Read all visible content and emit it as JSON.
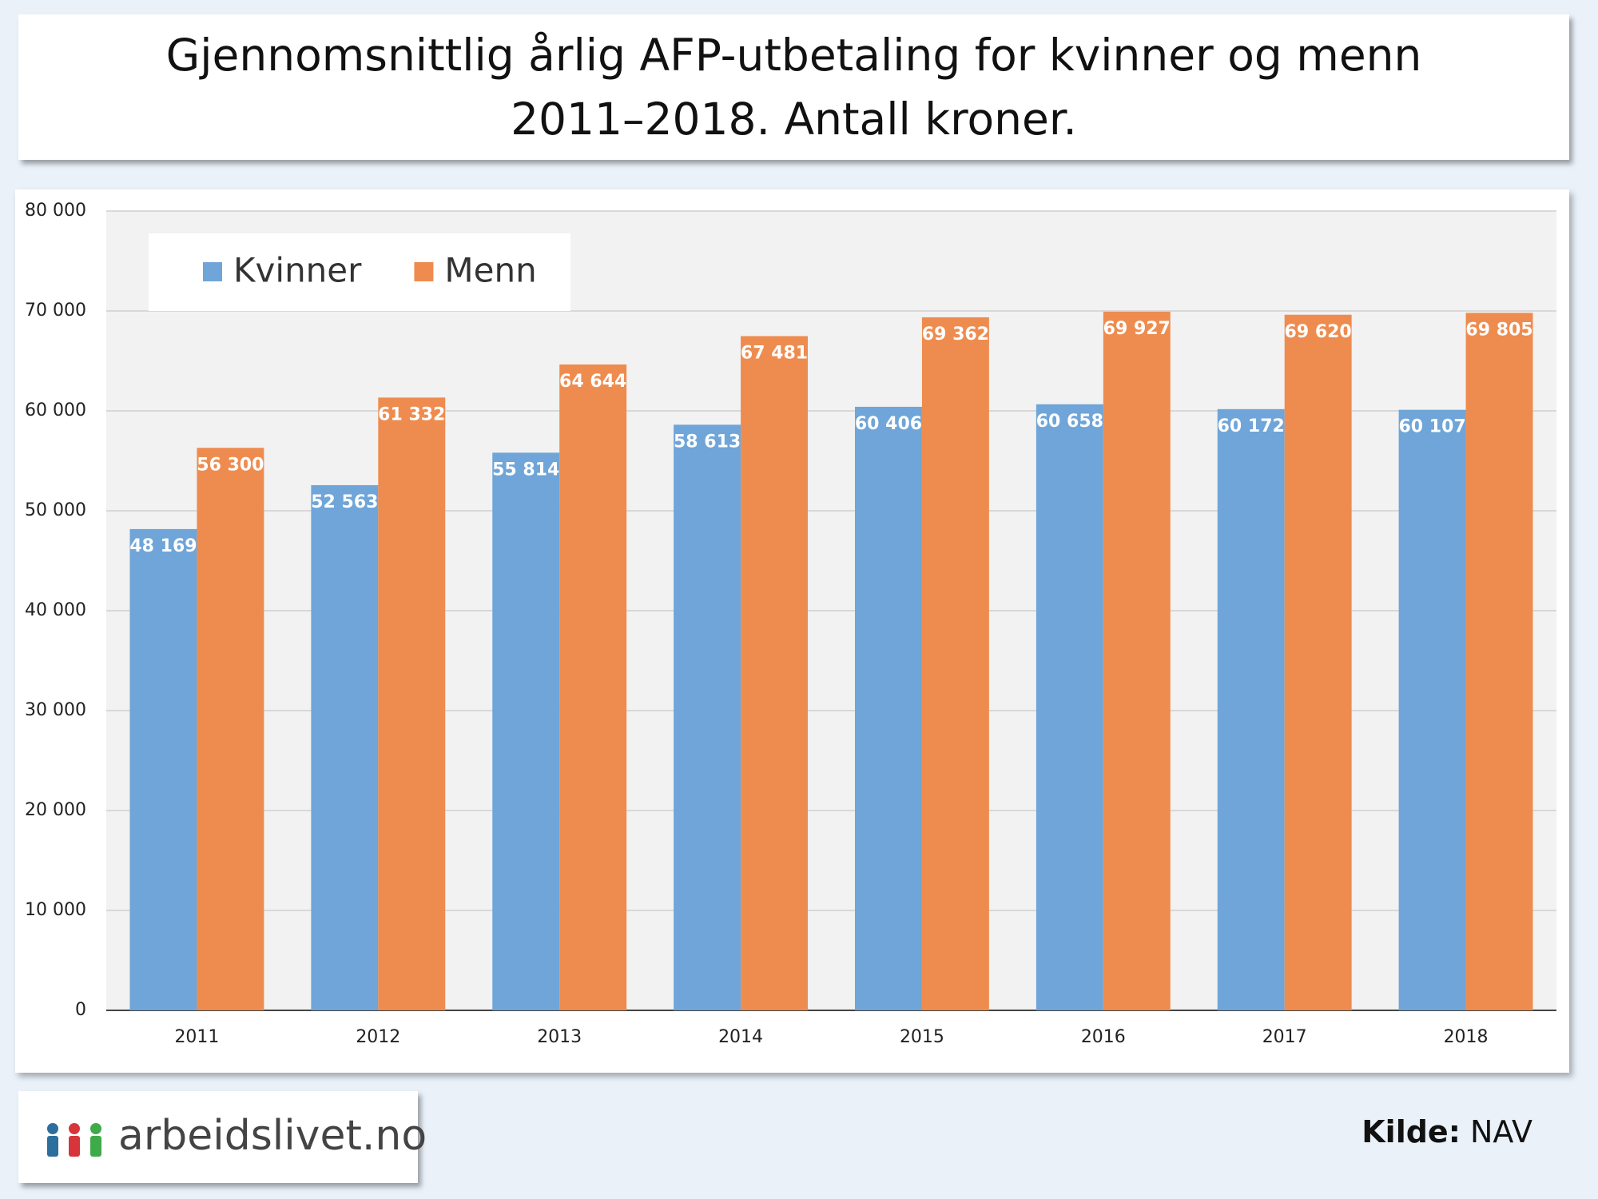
{
  "chart_data": {
    "type": "bar",
    "title": "Gjennomsnittlig årlig AFP-utbetaling for kvinner og menn 2011–2018. Antall kroner.",
    "categories": [
      "2011",
      "2012",
      "2013",
      "2014",
      "2015",
      "2016",
      "2017",
      "2018"
    ],
    "series": [
      {
        "name": "Kvinner",
        "color": "#6fa5d8",
        "values": [
          48169,
          52563,
          55814,
          58613,
          60406,
          60658,
          60172,
          60107
        ],
        "value_labels": [
          "48 169",
          "52 563",
          "55 814",
          "58 613",
          "60 406",
          "60 658",
          "60 172",
          "60 107"
        ]
      },
      {
        "name": "Menn",
        "color": "#ee8c4f",
        "values": [
          56300,
          61332,
          64644,
          67481,
          69362,
          69927,
          69620,
          69805
        ],
        "value_labels": [
          "56 300",
          "61 332",
          "64 644",
          "67 481",
          "69 362",
          "69 927",
          "69 620",
          "69 805"
        ]
      }
    ],
    "ylim": [
      0,
      80000
    ],
    "yticks": [
      0,
      {
        "value": 10000,
        "label": "10 000"
      },
      {
        "value": 20000,
        "label": "20 000"
      },
      {
        "value": 30000,
        "label": "30 000"
      },
      {
        "value": 40000,
        "label": "40 000"
      },
      {
        "value": 50000,
        "label": "50 000"
      },
      {
        "value": 60000,
        "label": "60 000"
      },
      {
        "value": 70000,
        "label": "70 000"
      },
      {
        "value": 80000,
        "label": "80 000"
      }
    ],
    "grid": true,
    "legend": "top-left"
  },
  "footer": {
    "logo_text": "arbeidslivet.no",
    "source_label": "Kilde:",
    "source": "NAV"
  }
}
